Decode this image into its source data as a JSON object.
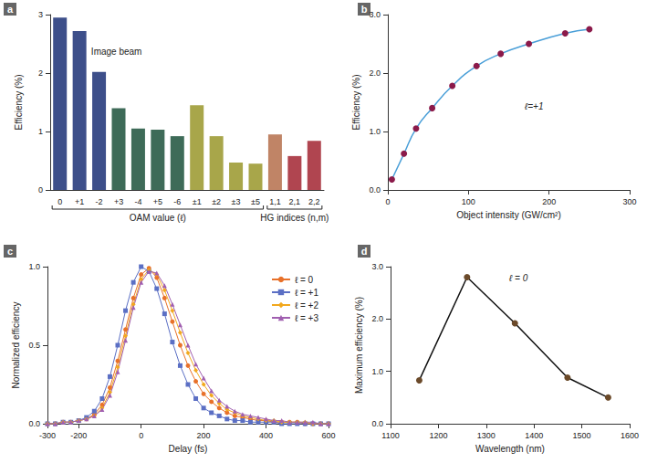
{
  "chart_data": [
    {
      "title": "a",
      "type": "bar",
      "categories": [
        "0",
        "+1",
        "-2",
        "+3",
        "-4",
        "+5",
        "-6",
        "±1",
        "±2",
        "±3",
        "±5",
        "1,1",
        "2,1",
        "2,2"
      ],
      "values": [
        2.95,
        2.72,
        2.02,
        1.4,
        1.05,
        1.03,
        0.92,
        1.45,
        0.92,
        0.47,
        0.45,
        0.95,
        0.58,
        0.84
      ],
      "colors": [
        "#3d4f8a",
        "#3d4f8a",
        "#3d4f8a",
        "#3e6b58",
        "#3e6b58",
        "#3e6b58",
        "#3e6b58",
        "#a8a64a",
        "#a8a64a",
        "#a8a64a",
        "#a8a64a",
        "#c08466",
        "#b04550",
        "#b04550"
      ],
      "y_label": "Efficiency (%)",
      "ylim": [
        0,
        3
      ],
      "yticks": [
        0,
        1,
        2,
        3
      ],
      "grid": false,
      "annotation": "Image beam",
      "groups": [
        {
          "label": "OAM value (ℓ)",
          "first": "0",
          "last": "±5"
        },
        {
          "label": "HG indices (n,m)",
          "first": "1,1",
          "last": "2,2"
        }
      ]
    },
    {
      "title": "b",
      "type": "line",
      "x": [
        5,
        20,
        35,
        55,
        80,
        110,
        140,
        175,
        220,
        250
      ],
      "values": [
        0.18,
        0.62,
        1.05,
        1.4,
        1.78,
        2.12,
        2.33,
        2.5,
        2.68,
        2.75
      ],
      "color": "#8b1a4a",
      "marker": "circle",
      "line_style": "solid",
      "x_label": "Object intensity (GW/cm²)",
      "y_label": "Efficiency (%)",
      "xlim": [
        0,
        300
      ],
      "xticks": [
        0,
        100,
        200,
        300
      ],
      "ylim": [
        0,
        3
      ],
      "yticks": [
        {
          "value": 0,
          "label": "0.0"
        },
        {
          "value": 1,
          "label": "1.0"
        },
        {
          "value": 2,
          "label": "2.0"
        },
        {
          "value": 3,
          "label": "3.0"
        }
      ],
      "grid": false,
      "annotation": "ℓ=+1"
    },
    {
      "title": "c",
      "type": "line",
      "x": [
        -300,
        -275,
        -250,
        -225,
        -200,
        -175,
        -150,
        -125,
        -100,
        -75,
        -50,
        -25,
        0,
        25,
        50,
        75,
        100,
        125,
        150,
        175,
        200,
        225,
        250,
        275,
        300,
        325,
        350,
        375,
        400,
        425,
        450,
        475,
        500,
        525,
        550,
        575,
        600
      ],
      "series": [
        {
          "name": "ℓ = 0",
          "color": "#e8712a",
          "marker": "circle",
          "values": [
            0,
            0,
            0.01,
            0.01,
            0.02,
            0.03,
            0.06,
            0.12,
            0.23,
            0.4,
            0.6,
            0.8,
            0.95,
            0.99,
            0.93,
            0.8,
            0.65,
            0.5,
            0.37,
            0.27,
            0.19,
            0.14,
            0.1,
            0.07,
            0.05,
            0.04,
            0.03,
            0.02,
            0.02,
            0.01,
            0.01,
            0.01,
            0.01,
            0,
            0,
            0,
            0
          ]
        },
        {
          "name": "ℓ = +1",
          "color": "#5b6fc4",
          "marker": "square",
          "values": [
            0,
            0,
            0.01,
            0.01,
            0.02,
            0.04,
            0.08,
            0.16,
            0.3,
            0.5,
            0.72,
            0.9,
            1.0,
            0.97,
            0.86,
            0.7,
            0.52,
            0.37,
            0.25,
            0.16,
            0.1,
            0.07,
            0.05,
            0.03,
            0.02,
            0.02,
            0.01,
            0.01,
            0.01,
            0.01,
            0,
            0,
            0,
            0,
            0,
            0,
            0
          ]
        },
        {
          "name": "ℓ = +2",
          "color": "#f2a81d",
          "marker": "diamond",
          "values": [
            0,
            0,
            0.01,
            0.01,
            0.02,
            0.03,
            0.05,
            0.1,
            0.2,
            0.36,
            0.56,
            0.76,
            0.92,
            0.98,
            0.95,
            0.85,
            0.72,
            0.58,
            0.45,
            0.34,
            0.25,
            0.18,
            0.13,
            0.09,
            0.07,
            0.05,
            0.04,
            0.03,
            0.02,
            0.02,
            0.01,
            0.01,
            0.01,
            0.01,
            0,
            0,
            0
          ]
        },
        {
          "name": "ℓ = +3",
          "color": "#a05fb0",
          "marker": "triangle",
          "values": [
            0,
            0,
            0.01,
            0.01,
            0.02,
            0.03,
            0.05,
            0.09,
            0.18,
            0.33,
            0.53,
            0.74,
            0.9,
            0.97,
            0.96,
            0.88,
            0.76,
            0.63,
            0.5,
            0.38,
            0.29,
            0.21,
            0.15,
            0.11,
            0.08,
            0.06,
            0.05,
            0.04,
            0.03,
            0.02,
            0.02,
            0.01,
            0.01,
            0.01,
            0.01,
            0,
            0
          ]
        }
      ],
      "x_label": "Delay (fs)",
      "y_label": "Normalized efficiency",
      "xlim": [
        -300,
        600
      ],
      "xticks": [
        -300,
        -200,
        0,
        200,
        400,
        600
      ],
      "ylim": [
        0,
        1
      ],
      "yticks": [
        {
          "value": 0,
          "label": "0.0"
        },
        {
          "value": 0.5,
          "label": "0.5"
        },
        {
          "value": 1,
          "label": "1.0"
        }
      ],
      "legend": "upper right",
      "grid": false
    },
    {
      "title": "d",
      "type": "line",
      "x": [
        1160,
        1260,
        1360,
        1470,
        1555
      ],
      "values": [
        0.83,
        2.8,
        1.92,
        0.88,
        0.5
      ],
      "color": "#6b4a2a",
      "marker": "circle",
      "line_style": "solid",
      "x_label": "Wavelength (nm)",
      "y_label": "Maximum efficiency (%)",
      "xlim": [
        1100,
        1600
      ],
      "xticks": [
        1100,
        1200,
        1300,
        1400,
        1500,
        1600
      ],
      "ylim": [
        0,
        3
      ],
      "yticks": [
        {
          "value": 0,
          "label": "0.0"
        },
        {
          "value": 1,
          "label": "1.0"
        },
        {
          "value": 2,
          "label": "2.0"
        },
        {
          "value": 3,
          "label": "3.0"
        }
      ],
      "grid": false,
      "annotation": "ℓ = 0"
    }
  ]
}
